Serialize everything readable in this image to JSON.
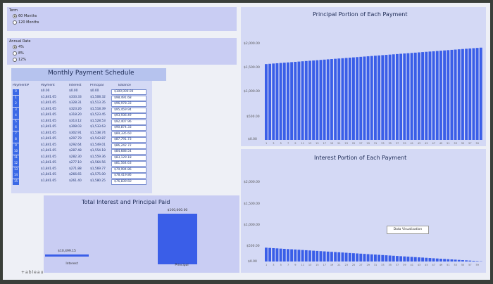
{
  "term": {
    "label": "Term",
    "options": [
      {
        "label": "60 Months",
        "selected": true
      },
      {
        "label": "120 Months",
        "selected": false
      }
    ]
  },
  "rate": {
    "label": "Annual Rate",
    "options": [
      {
        "label": "4%",
        "selected": true
      },
      {
        "label": "8%",
        "selected": false
      },
      {
        "label": "12%",
        "selected": false
      }
    ]
  },
  "schedule": {
    "title": "Monthly Payment Schedule",
    "headers": [
      "Payment#",
      "Payment",
      "Interest",
      "Principal",
      "Balance"
    ],
    "rows": [
      [
        "0",
        "$0.00",
        "$0.00",
        "$0.00",
        "$100,000.00"
      ],
      [
        "1",
        "$1,841.65",
        "$333.33",
        "$1,508.32",
        "$98,491.68"
      ],
      [
        "2",
        "$1,841.65",
        "$328.31",
        "$1,513.35",
        "$96,978.33"
      ],
      [
        "3",
        "$1,841.65",
        "$323.26",
        "$1,518.39",
        "$95,459.94"
      ],
      [
        "4",
        "$1,841.65",
        "$318.20",
        "$1,523.45",
        "$93,936.49"
      ],
      [
        "5",
        "$1,841.65",
        "$313.12",
        "$1,528.53",
        "$92,407.96"
      ],
      [
        "6",
        "$1,841.65",
        "$308.03",
        "$1,533.63",
        "$90,874.33"
      ],
      [
        "7",
        "$1,841.65",
        "$302.91",
        "$1,538.74",
        "$89,335.60"
      ],
      [
        "8",
        "$1,841.65",
        "$297.79",
        "$1,543.87",
        "$87,791.73"
      ],
      [
        "9",
        "$1,841.65",
        "$292.64",
        "$1,549.01",
        "$86,242.72"
      ],
      [
        "10",
        "$1,841.65",
        "$287.48",
        "$1,554.18",
        "$84,688.54"
      ],
      [
        "11",
        "$1,841.65",
        "$282.30",
        "$1,559.36",
        "$83,129.18"
      ],
      [
        "12",
        "$1,841.65",
        "$277.10",
        "$1,564.56",
        "$81,564.63"
      ],
      [
        "13",
        "$1,841.65",
        "$271.88",
        "$1,569.77",
        "$79,994.86"
      ],
      [
        "14",
        "$1,841.65",
        "$266.65",
        "$1,575.00",
        "$78,419.86"
      ],
      [
        "15",
        "$1,841.65",
        "$261.40",
        "$1,580.25",
        "$76,839.60"
      ]
    ]
  },
  "total_chart": {
    "title": "Total Interest and Principal Paid",
    "interest_label": "$10,499.15",
    "principal_label": "$100,000.00",
    "categories": [
      "Interest",
      "Principal"
    ],
    "values": [
      10499.15,
      100000
    ]
  },
  "principal_chart": {
    "title": "Principal Portion of Each Payment",
    "ticks": [
      "$2,000.00",
      "$1,500.00",
      "$1,000.00",
      "$500.00",
      "$0.00"
    ]
  },
  "interest_chart": {
    "title": "Interest Portion of Each Payment",
    "ticks": [
      "$2,000.00",
      "$1,500.00",
      "$1,000.00",
      "$500.00",
      "$0.00"
    ]
  },
  "tooltip": "Data Visualization",
  "logo": "+ableau",
  "colors": {
    "bar": "#3a5ee8",
    "panel": "#c9cdf3",
    "row_num": "#3b69e6"
  },
  "chart_data": [
    {
      "type": "bar",
      "title": "Principal Portion of Each Payment",
      "ylim": [
        0,
        2000
      ],
      "x_start": 1,
      "x_end": 60,
      "first_value": 1508.32,
      "last_value": 1835.53
    },
    {
      "type": "bar",
      "title": "Interest Portion of Each Payment",
      "ylim": [
        0,
        2000
      ],
      "x_start": 1,
      "x_end": 60,
      "first_value": 333.33,
      "last_value": 6.12
    },
    {
      "type": "bar",
      "title": "Total Interest and Principal Paid",
      "categories": [
        "Interest",
        "Principal"
      ],
      "values": [
        10499.15,
        100000
      ]
    }
  ]
}
